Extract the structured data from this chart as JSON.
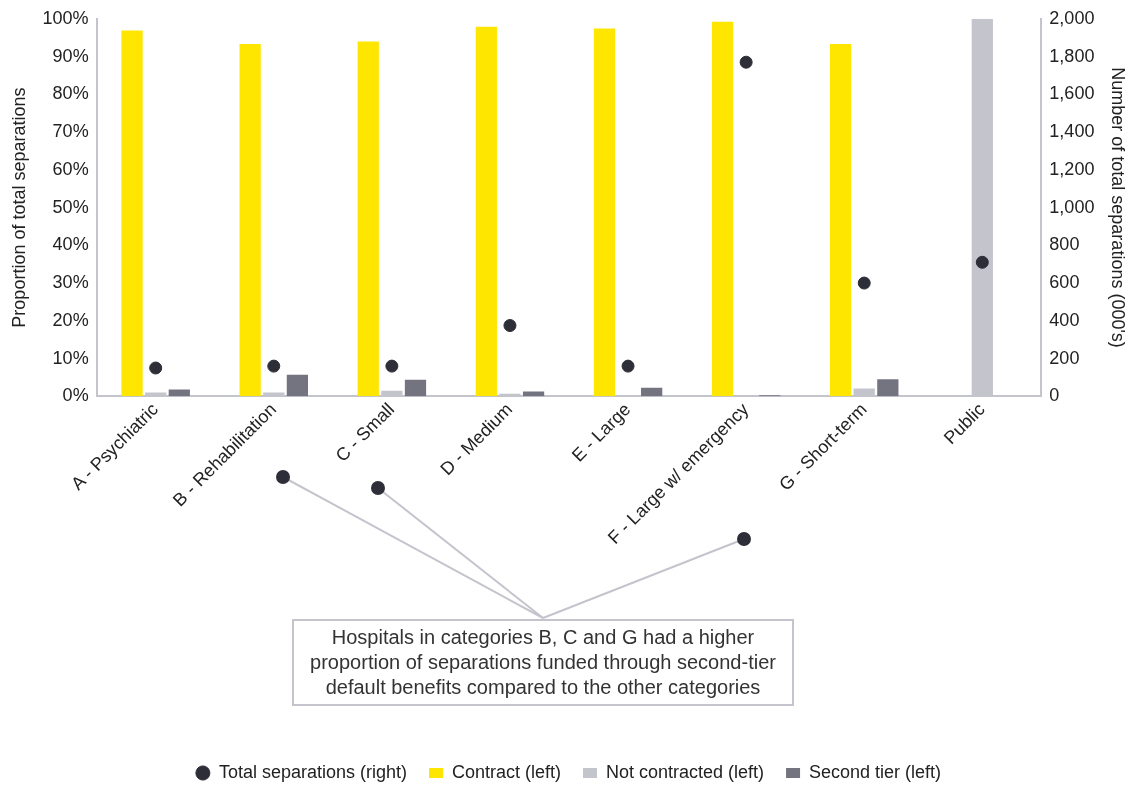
{
  "chart_data": {
    "type": "bar",
    "ylabel": "Proportion of total separations",
    "y2label": "Number of total separations (000's)",
    "categories": [
      "A - Psychiatric",
      "B - Rehabilitation",
      "C - Small",
      "D - Medium",
      "E - Large",
      "F - Large w/ emergency",
      "G - Short-term",
      "Public"
    ],
    "series": [
      {
        "name": "Contract (left)",
        "color": "#ffe600",
        "values": [
          96.9,
          93.3,
          94.0,
          97.9,
          97.4,
          99.2,
          93.3,
          null
        ]
      },
      {
        "name": "Not contracted (left)",
        "color": "#c4c4cd",
        "values": [
          1.0,
          1.0,
          1.5,
          0.7,
          0.3,
          0.3,
          2.1,
          100
        ]
      },
      {
        "name": "Second tier (left)",
        "color": "#747480",
        "values": [
          1.8,
          5.7,
          4.4,
          1.3,
          2.3,
          0.3,
          4.5,
          null
        ]
      },
      {
        "name": "Total separations (right)",
        "type": "scatter",
        "axis": "y2",
        "marker": "circle",
        "color": "#2e2e38",
        "values": [
          150,
          160,
          160,
          375,
          160,
          1770,
          600,
          710
        ]
      }
    ],
    "ylim": [
      0,
      100
    ],
    "yticks": [
      {
        "value": 0,
        "label": "0%"
      },
      {
        "value": 10,
        "label": "10%"
      },
      {
        "value": 20,
        "label": "20%"
      },
      {
        "value": 30,
        "label": "30%"
      },
      {
        "value": 40,
        "label": "40%"
      },
      {
        "value": 50,
        "label": "50%"
      },
      {
        "value": 60,
        "label": "60%"
      },
      {
        "value": 70,
        "label": "70%"
      },
      {
        "value": 80,
        "label": "80%"
      },
      {
        "value": 90,
        "label": "90%"
      },
      {
        "value": 100,
        "label": "100%"
      }
    ],
    "y2lim": [
      0,
      2000
    ],
    "y2ticks": [
      {
        "value": 0,
        "label": "0"
      },
      {
        "value": 200,
        "label": "200"
      },
      {
        "value": 400,
        "label": "400"
      },
      {
        "value": 600,
        "label": "600"
      },
      {
        "value": 800,
        "label": "800"
      },
      {
        "value": 1000,
        "label": "1,000"
      },
      {
        "value": 1200,
        "label": "1,200"
      },
      {
        "value": 1400,
        "label": "1,400"
      },
      {
        "value": 1600,
        "label": "1,600"
      },
      {
        "value": 1800,
        "label": "1,800"
      },
      {
        "value": 2000,
        "label": "2,000"
      }
    ],
    "grid": false,
    "legend": "bottom",
    "annotations": [
      "Hospitals in categories B, C and G had a higher proportion of separations funded through second-tier default benefits compared to the other categories"
    ]
  }
}
